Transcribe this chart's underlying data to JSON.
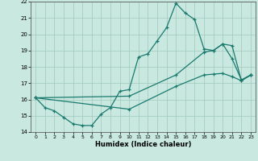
{
  "xlabel": "Humidex (Indice chaleur)",
  "line_color": "#1a7a6e",
  "bg_color": "#c8e8e0",
  "grid_color": "#a0c8bc",
  "xlim": [
    -0.5,
    23.5
  ],
  "ylim": [
    14,
    22
  ],
  "xticks": [
    0,
    1,
    2,
    3,
    4,
    5,
    6,
    7,
    8,
    9,
    10,
    11,
    12,
    13,
    14,
    15,
    16,
    17,
    18,
    19,
    20,
    21,
    22,
    23
  ],
  "yticks": [
    14,
    15,
    16,
    17,
    18,
    19,
    20,
    21,
    22
  ],
  "line1_x": [
    0,
    1,
    2,
    3,
    4,
    5,
    6,
    7,
    8,
    9,
    10,
    11,
    12,
    13,
    14,
    15,
    16,
    17,
    18,
    19,
    20,
    21,
    22,
    23
  ],
  "line1_y": [
    16.1,
    15.5,
    15.3,
    14.9,
    14.5,
    14.4,
    14.4,
    15.1,
    15.5,
    16.5,
    16.6,
    18.6,
    18.8,
    19.6,
    20.4,
    21.9,
    21.3,
    20.9,
    19.1,
    19.0,
    19.4,
    18.5,
    17.2,
    17.5
  ],
  "line2_x": [
    0,
    10,
    15,
    18,
    19,
    20,
    21,
    22,
    23
  ],
  "line2_y": [
    16.1,
    16.2,
    17.5,
    18.9,
    19.0,
    19.4,
    19.3,
    17.15,
    17.5
  ],
  "line3_x": [
    0,
    10,
    15,
    18,
    19,
    20,
    21,
    22,
    23
  ],
  "line3_y": [
    16.1,
    15.4,
    16.8,
    17.5,
    17.55,
    17.6,
    17.4,
    17.15,
    17.5
  ]
}
